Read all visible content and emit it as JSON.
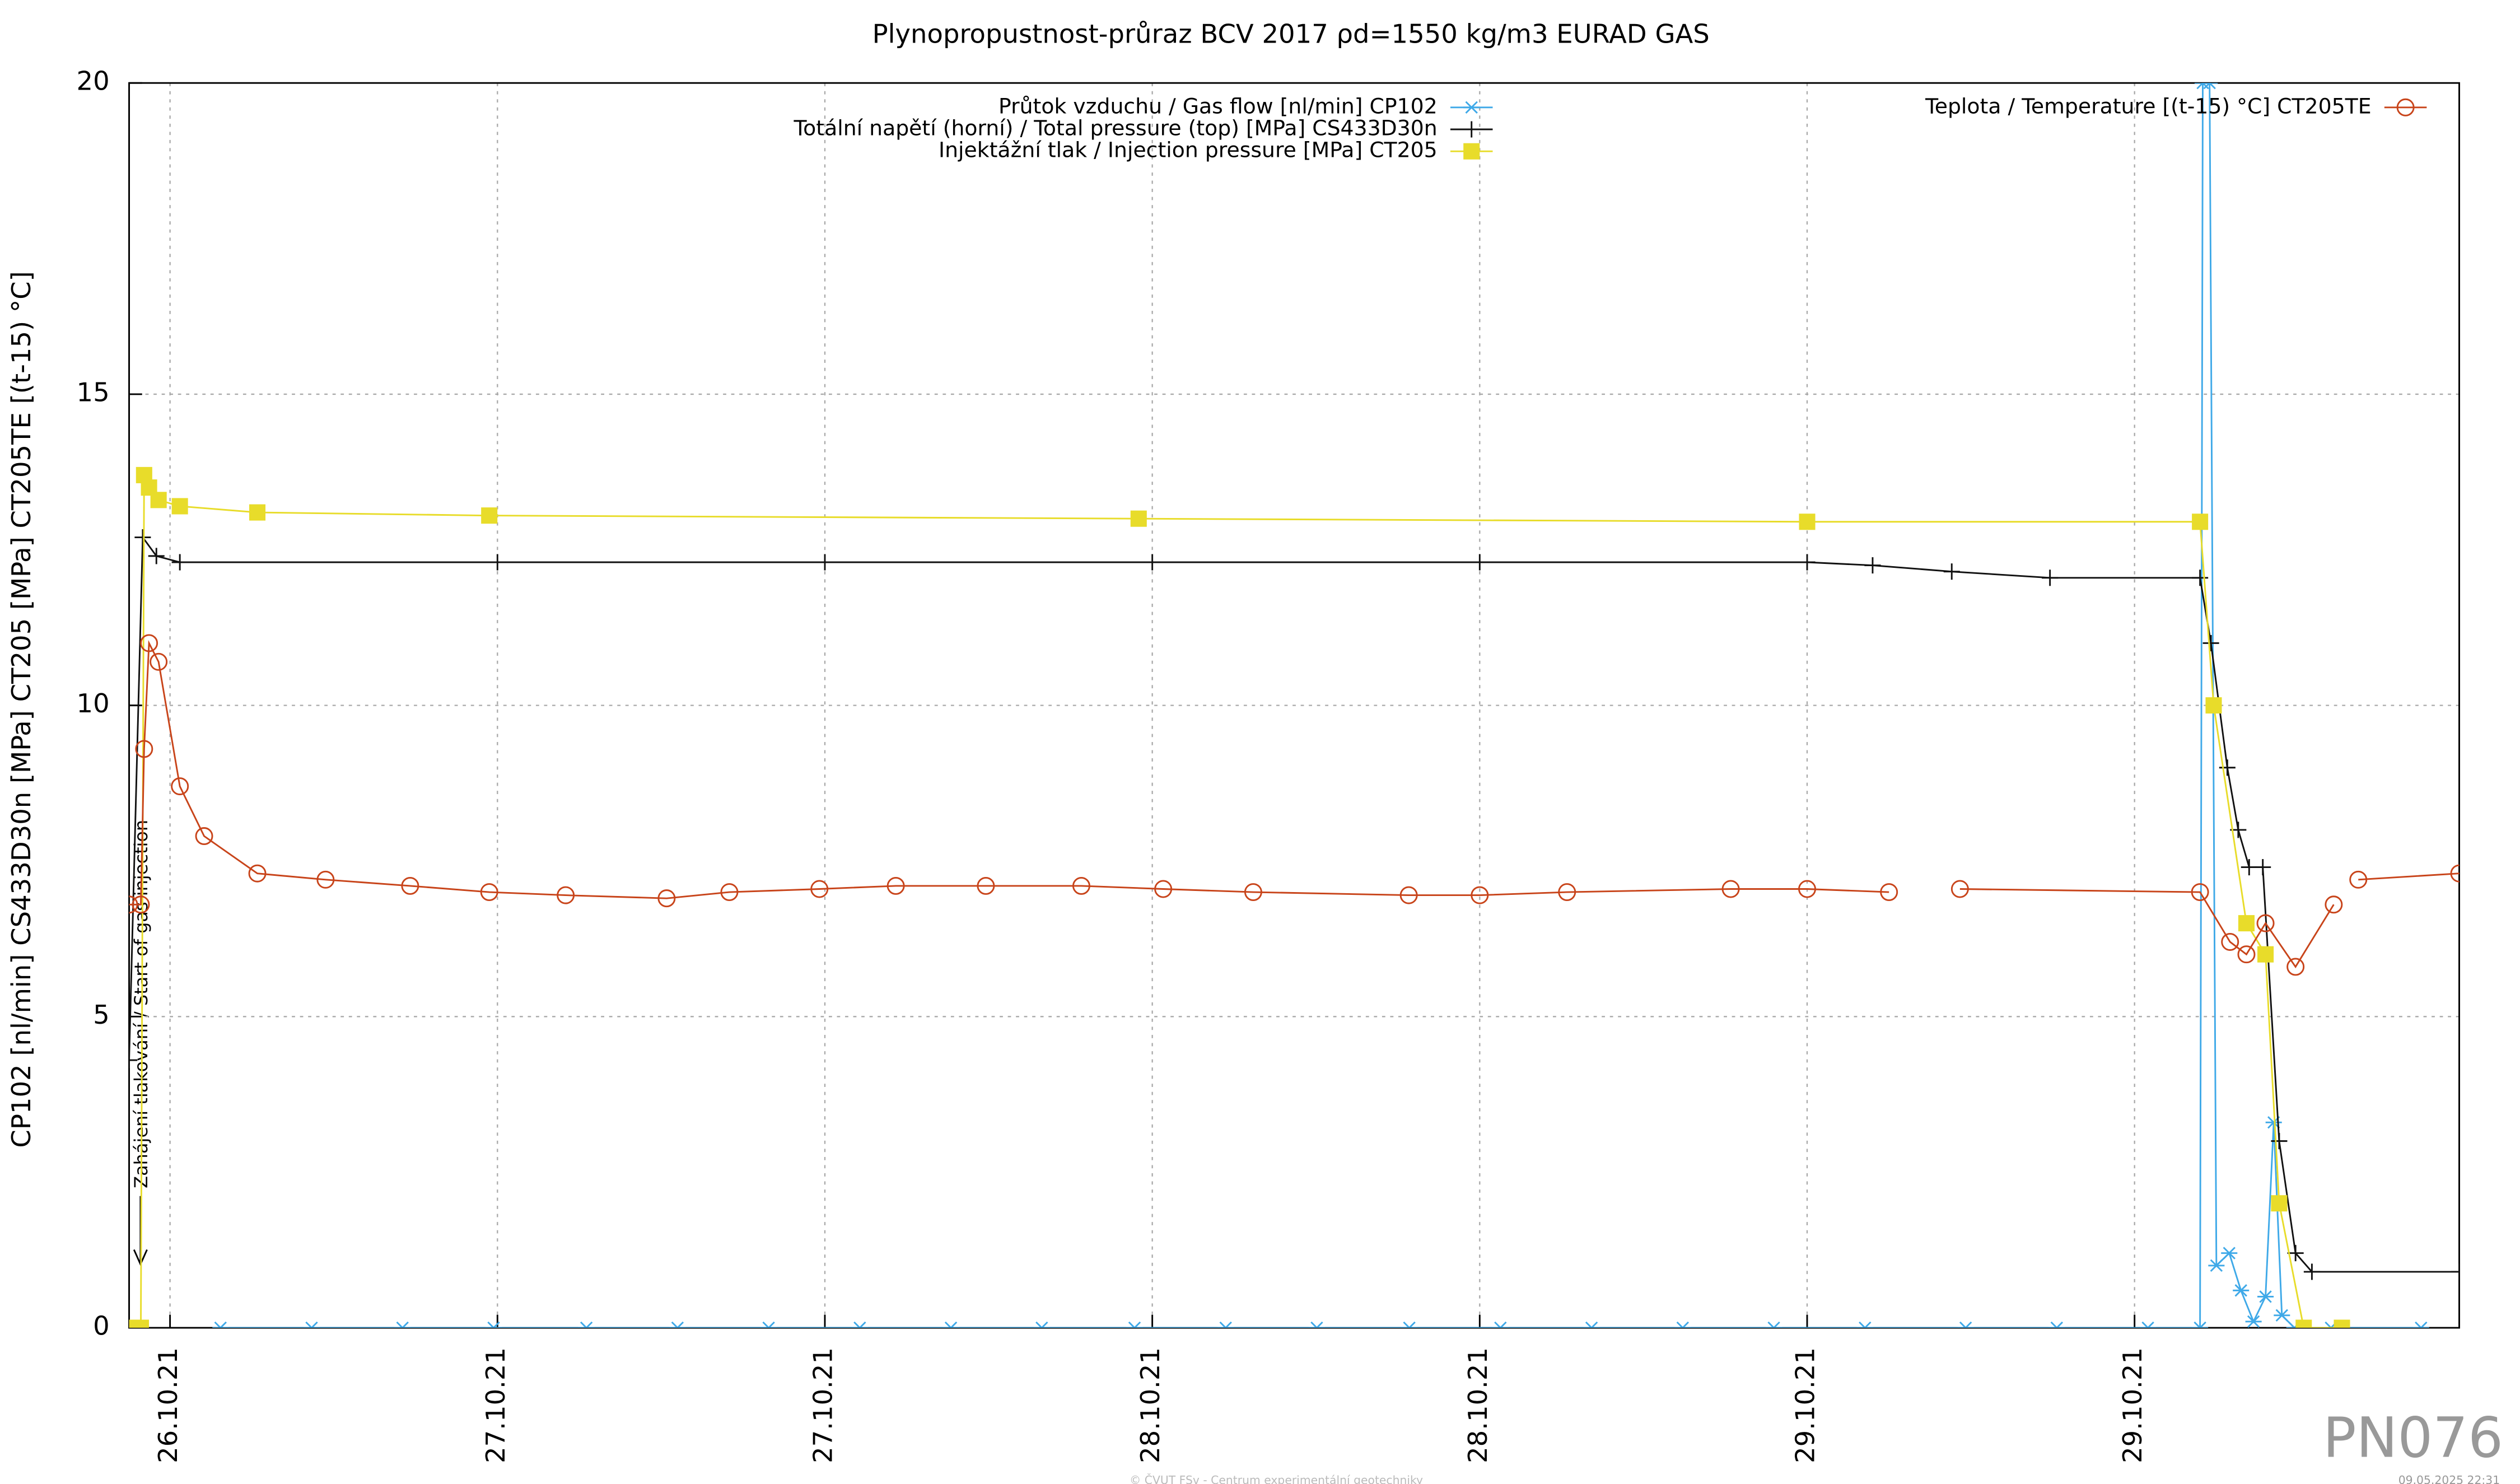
{
  "chart_data": {
    "type": "line",
    "title": "Plynopropustnost-průraz BCV 2017 ρd=1550 kg/m3 EURAD GAS",
    "y_label": "CP102 [nl/min] CS433D30n [MPa] CT205 [MPa] CT205TE [(t-15) °C]",
    "annotation": "Zahájení tlakování / Start of gas injection",
    "watermark": "PN076",
    "footer": "© ČVUT FSv - Centrum experimentální geotechniky",
    "timestamp": "09.05.2025 22:31",
    "xlim": [
      -1.5,
      83.9
    ],
    "ylim": [
      0,
      20
    ],
    "xticks": [
      {
        "value": 0,
        "label": "26.10.21"
      },
      {
        "value": 12,
        "label": "27.10.21"
      },
      {
        "value": 24,
        "label": "27.10.21"
      },
      {
        "value": 36,
        "label": "28.10.21"
      },
      {
        "value": 48,
        "label": "28.10.21"
      },
      {
        "value": 60,
        "label": "29.10.21"
      },
      {
        "value": 72,
        "label": "29.10.21"
      }
    ],
    "yticks": [
      0,
      5,
      10,
      15,
      20
    ],
    "grid": true,
    "legend": "top",
    "series": [
      {
        "name": "Průtok vzduchu / Gas flow [nl/min] CP102",
        "color": "#3fa9e8",
        "marker": "asterisk",
        "x": [
          1.85,
          5.19,
          8.52,
          11.86,
          15.26,
          18.6,
          21.94,
          25.28,
          28.62,
          31.95,
          35.35,
          38.69,
          42.03,
          45.42,
          48.76,
          52.1,
          55.44,
          58.78,
          62.12,
          65.81,
          69.15,
          72.49,
          74.4,
          74.5,
          74.75,
          75.0,
          75.47,
          75.9,
          76.36,
          76.8,
          77.1,
          77.4,
          77.86,
          79.2,
          82.5
        ],
        "values": [
          0,
          0,
          0,
          0,
          0,
          0,
          0,
          0,
          0,
          0,
          0,
          0,
          0,
          0,
          0,
          0,
          0,
          0,
          0,
          0,
          0,
          0,
          0,
          20,
          20,
          1.0,
          1.2,
          0.6,
          0.1,
          0.5,
          3.3,
          0.2,
          0,
          0,
          0
        ]
      },
      {
        "name": "Totální napětí (horní) / Total pressure (top) [MPa] CS433D30n",
        "color": "#111111",
        "marker": "plus",
        "x": [
          -1.5,
          -1.0,
          -0.5,
          0.36,
          12,
          24,
          36,
          48,
          60,
          62.4,
          65.3,
          68.9,
          74.4,
          74.8,
          75.4,
          75.8,
          76.2,
          76.7,
          77.3,
          77.9,
          78.5,
          83.9
        ],
        "values": [
          4.3,
          12.7,
          12.4,
          12.3,
          12.3,
          12.3,
          12.3,
          12.3,
          12.3,
          12.25,
          12.15,
          12.05,
          12.05,
          11.0,
          9.0,
          8.0,
          7.4,
          7.4,
          3.0,
          1.2,
          0.9,
          0.9
        ]
      },
      {
        "name": "Injektážní tlak / Injection pressure [MPa] CT205",
        "color": "#e8dc2a",
        "marker": "square",
        "x": [
          -1.5,
          -1.07,
          -0.95,
          -0.77,
          -0.42,
          0.36,
          3.2,
          11.7,
          35.5,
          60,
          74.4,
          74.9,
          76.1,
          76.8,
          77.3,
          78.2,
          79.6
        ],
        "values": [
          0,
          0,
          13.7,
          13.5,
          13.3,
          13.2,
          13.1,
          13.05,
          13.0,
          12.95,
          12.95,
          10.0,
          6.5,
          6.0,
          2.0,
          0,
          0
        ]
      },
      {
        "name": "Teplota / Temperature [(t-15) °C] CT205TE",
        "color": "#c8441a",
        "marker": "circle",
        "x": [
          -1.5,
          -1.07,
          -0.95,
          -0.77,
          -0.42,
          0.36,
          1.25,
          3.2,
          5.7,
          8.8,
          11.7,
          14.5,
          18.2,
          20.5,
          23.8,
          26.6,
          29.9,
          33.4,
          36.4,
          39.7,
          45.4,
          48.0,
          51.2,
          57.2,
          60.0,
          63.0,
          64.2,
          65.6,
          74.4,
          75.5,
          76.1,
          76.8,
          77.9,
          79.3,
          79.8,
          80.2,
          83.9
        ],
        "values": [
          6.8,
          6.8,
          9.3,
          11.0,
          10.7,
          8.7,
          7.9,
          7.3,
          7.2,
          7.1,
          7.0,
          6.95,
          6.9,
          7.0,
          7.05,
          7.1,
          7.1,
          7.1,
          7.05,
          7.0,
          6.95,
          6.95,
          7.0,
          7.05,
          7.05,
          7.0,
          null,
          7.05,
          7.0,
          6.2,
          6.0,
          6.5,
          5.8,
          6.8,
          null,
          7.2,
          7.3
        ]
      }
    ]
  }
}
